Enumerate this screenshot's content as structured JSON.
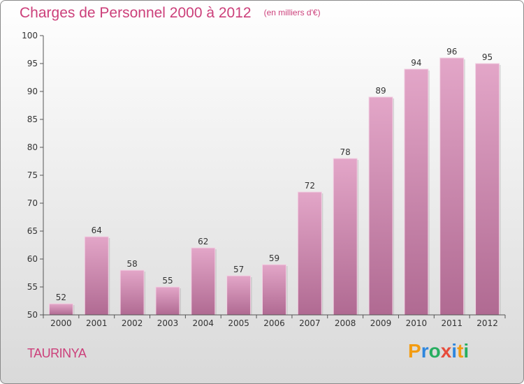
{
  "title": "Charges de Personnel 2000 à 2012",
  "subtitle": "(en milliers d'€)",
  "commune": "TAURINYA",
  "logo": {
    "text": "Proxiti",
    "letters": [
      {
        "char": "P",
        "color": "#f39c12"
      },
      {
        "char": "r",
        "color": "#2e86de"
      },
      {
        "char": "o",
        "color": "#27ae60"
      },
      {
        "char": "x",
        "color": "#e74c3c"
      },
      {
        "char": "i",
        "color": "#2e86de"
      },
      {
        "char": "t",
        "color": "#f39c12"
      },
      {
        "char": "i",
        "color": "#27ae60"
      }
    ]
  },
  "colors": {
    "title": "#cc3f7a",
    "bar_top": "#e3a6c8",
    "bar_bottom": "#b06a92",
    "axis": "#555555",
    "grid": "#cccccc"
  },
  "chart_data": {
    "type": "bar",
    "title": "Charges de Personnel 2000 à 2012",
    "subtitle": "(en milliers d'€)",
    "xlabel": "",
    "ylabel": "",
    "categories": [
      "2000",
      "2001",
      "2002",
      "2003",
      "2004",
      "2005",
      "2006",
      "2007",
      "2008",
      "2009",
      "2010",
      "2011",
      "2012"
    ],
    "values": [
      52,
      64,
      58,
      55,
      62,
      57,
      59,
      72,
      78,
      89,
      94,
      96,
      95
    ],
    "ylim": [
      50,
      100
    ],
    "yticks": [
      50,
      55,
      60,
      65,
      70,
      75,
      80,
      85,
      90,
      95,
      100
    ],
    "grid": false,
    "data_labels": true
  }
}
